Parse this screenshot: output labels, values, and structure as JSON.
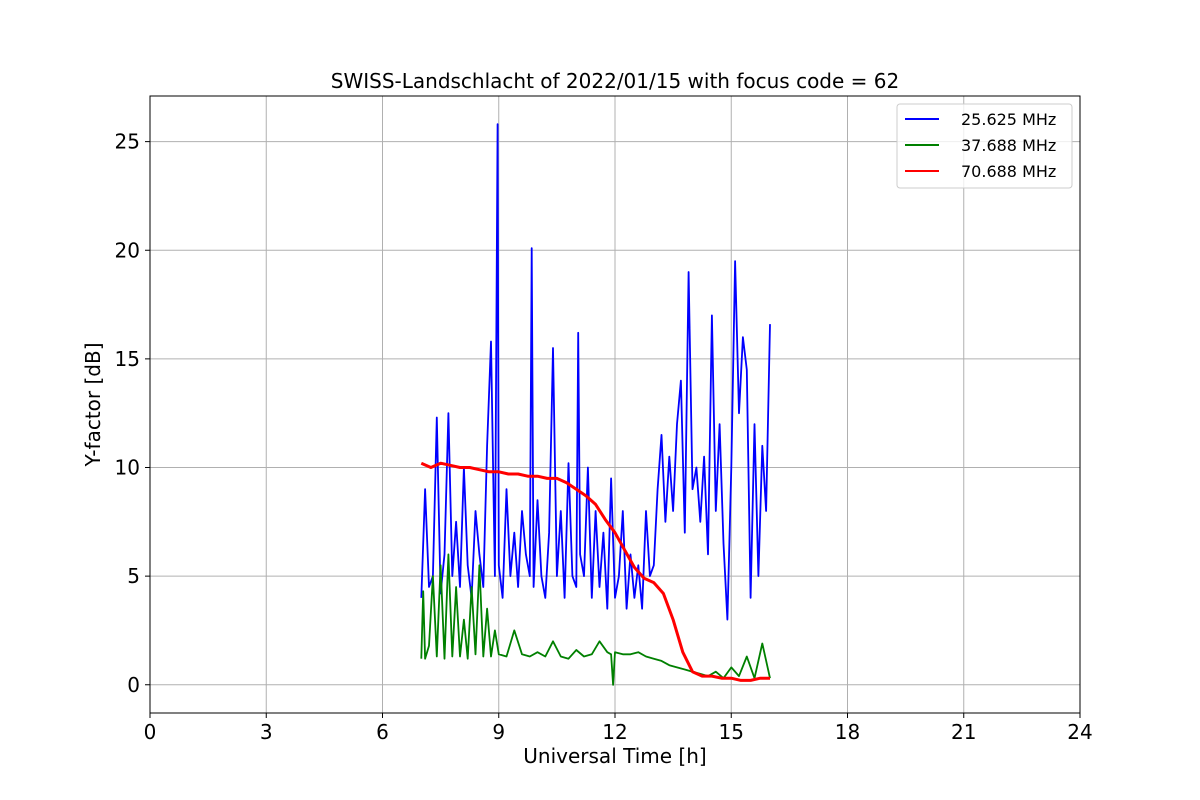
{
  "chart_data": {
    "type": "line",
    "title": "SWISS-Landschlacht of 2022/01/15 with focus code = 62",
    "xlabel": "Universal Time [h]",
    "ylabel": "Y-factor [dB]",
    "xlim": [
      0,
      24
    ],
    "ylim": [
      -1.3,
      27.1
    ],
    "xticks": [
      0,
      3,
      6,
      9,
      12,
      15,
      18,
      21,
      24
    ],
    "yticks": [
      0,
      5,
      10,
      15,
      20,
      25
    ],
    "grid": true,
    "legend_position": "top-right",
    "series": [
      {
        "name": "25.625 MHz",
        "color": "#0000ff",
        "x": [
          7.0,
          7.1,
          7.2,
          7.3,
          7.4,
          7.5,
          7.6,
          7.7,
          7.8,
          7.9,
          8.0,
          8.1,
          8.2,
          8.3,
          8.4,
          8.5,
          8.6,
          8.7,
          8.8,
          8.9,
          8.97,
          9.0,
          9.1,
          9.2,
          9.3,
          9.4,
          9.5,
          9.6,
          9.7,
          9.8,
          9.85,
          9.9,
          10.0,
          10.1,
          10.2,
          10.3,
          10.4,
          10.5,
          10.6,
          10.7,
          10.8,
          10.9,
          11.0,
          11.05,
          11.1,
          11.2,
          11.3,
          11.4,
          11.5,
          11.6,
          11.7,
          11.8,
          11.9,
          12.0,
          12.1,
          12.2,
          12.3,
          12.4,
          12.5,
          12.6,
          12.7,
          12.8,
          12.9,
          13.0,
          13.1,
          13.2,
          13.3,
          13.4,
          13.5,
          13.6,
          13.7,
          13.8,
          13.9,
          14.0,
          14.1,
          14.2,
          14.3,
          14.4,
          14.5,
          14.6,
          14.7,
          14.8,
          14.9,
          15.0,
          15.1,
          15.2,
          15.3,
          15.4,
          15.5,
          15.6,
          15.7,
          15.8,
          15.9,
          16.0
        ],
        "y": [
          4.0,
          9.0,
          4.5,
          5.0,
          12.3,
          4.2,
          6.0,
          12.5,
          5.0,
          7.5,
          4.5,
          10.0,
          5.5,
          4.0,
          8.0,
          6.0,
          4.5,
          11.0,
          15.8,
          5.0,
          25.8,
          5.5,
          4.0,
          9.0,
          5.0,
          7.0,
          4.5,
          8.0,
          6.0,
          5.0,
          20.1,
          4.5,
          8.5,
          5.0,
          4.0,
          7.0,
          15.5,
          5.0,
          8.0,
          4.0,
          10.2,
          5.0,
          4.5,
          16.2,
          6.0,
          5.0,
          10.0,
          4.0,
          8.0,
          4.5,
          7.0,
          3.5,
          9.5,
          4.0,
          5.0,
          8.0,
          3.5,
          6.0,
          4.0,
          5.5,
          3.5,
          8.0,
          5.0,
          5.5,
          9.0,
          11.5,
          7.5,
          10.5,
          8.0,
          12.0,
          14.0,
          7.0,
          19.0,
          9.0,
          10.0,
          7.5,
          10.5,
          6.0,
          17.0,
          8.0,
          12.0,
          6.5,
          3.0,
          10.0,
          19.5,
          12.5,
          16.0,
          14.5,
          4.0,
          12.0,
          5.0,
          11.0,
          8.0,
          16.6
        ]
      },
      {
        "name": "37.688 MHz",
        "color": "#008000",
        "x": [
          7.0,
          7.05,
          7.1,
          7.2,
          7.3,
          7.4,
          7.5,
          7.6,
          7.7,
          7.8,
          7.9,
          8.0,
          8.1,
          8.2,
          8.3,
          8.4,
          8.5,
          8.6,
          8.7,
          8.8,
          8.9,
          9.0,
          9.2,
          9.4,
          9.6,
          9.8,
          10.0,
          10.2,
          10.4,
          10.6,
          10.8,
          11.0,
          11.2,
          11.4,
          11.6,
          11.8,
          11.9,
          11.95,
          12.0,
          12.2,
          12.4,
          12.6,
          12.8,
          13.0,
          13.2,
          13.4,
          13.6,
          13.8,
          14.0,
          14.2,
          14.4,
          14.6,
          14.8,
          15.0,
          15.2,
          15.4,
          15.6,
          15.8,
          16.0
        ],
        "y": [
          1.2,
          4.3,
          1.2,
          1.8,
          5.0,
          1.3,
          5.5,
          1.2,
          6.0,
          1.3,
          4.5,
          1.3,
          3.0,
          1.2,
          4.5,
          1.4,
          5.5,
          1.3,
          3.5,
          1.3,
          2.5,
          1.4,
          1.3,
          2.5,
          1.4,
          1.3,
          1.5,
          1.3,
          2.0,
          1.3,
          1.2,
          1.6,
          1.3,
          1.4,
          2.0,
          1.5,
          1.4,
          0.0,
          1.5,
          1.4,
          1.4,
          1.5,
          1.3,
          1.2,
          1.1,
          0.9,
          0.8,
          0.7,
          0.6,
          0.5,
          0.4,
          0.6,
          0.3,
          0.8,
          0.4,
          1.3,
          0.3,
          1.9,
          0.3
        ]
      },
      {
        "name": "70.688 MHz",
        "color": "#ff0000",
        "x": [
          7.0,
          7.25,
          7.5,
          7.75,
          8.0,
          8.25,
          8.5,
          8.75,
          9.0,
          9.25,
          9.5,
          9.75,
          10.0,
          10.25,
          10.5,
          10.75,
          11.0,
          11.25,
          11.5,
          11.75,
          12.0,
          12.25,
          12.5,
          12.75,
          13.0,
          13.25,
          13.5,
          13.75,
          14.0,
          14.25,
          14.5,
          14.75,
          15.0,
          15.25,
          15.5,
          15.75,
          16.0
        ],
        "y": [
          10.2,
          10.0,
          10.2,
          10.1,
          10.0,
          10.0,
          9.9,
          9.8,
          9.8,
          9.7,
          9.7,
          9.6,
          9.6,
          9.5,
          9.5,
          9.3,
          9.0,
          8.7,
          8.3,
          7.6,
          7.0,
          6.2,
          5.4,
          4.9,
          4.7,
          4.2,
          3.0,
          1.5,
          0.6,
          0.4,
          0.4,
          0.3,
          0.3,
          0.2,
          0.2,
          0.3,
          0.3
        ]
      }
    ]
  }
}
